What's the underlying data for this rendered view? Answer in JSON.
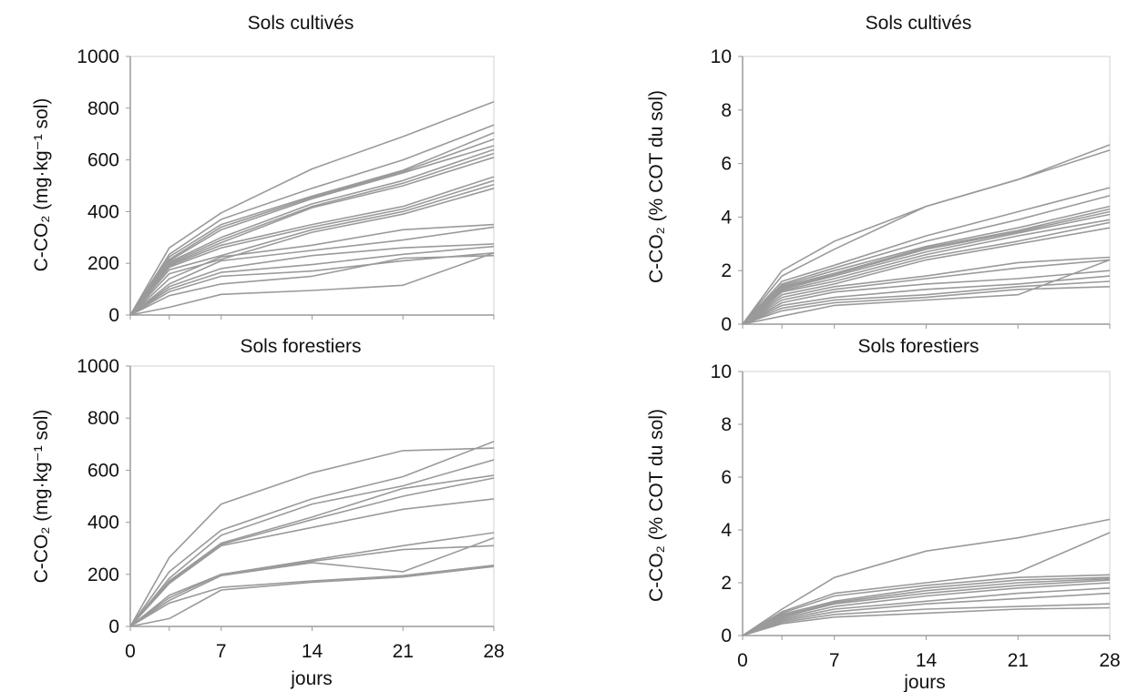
{
  "figure": {
    "line_color": "#9a9a9a",
    "axis_color": "#9a9a9a"
  },
  "chart_data": [
    {
      "type": "line",
      "title": "Sols cultivés",
      "ylabel": "C-CO₂ (mg·kg⁻¹ sol)",
      "xlabel": "",
      "x": [
        0,
        3,
        7,
        14,
        21,
        28
      ],
      "xlim": [
        0,
        28
      ],
      "ylim": [
        0,
        1000
      ],
      "yticks": [
        0,
        200,
        400,
        600,
        800,
        1000
      ],
      "xticks": [],
      "grid": false,
      "series": [
        {
          "values": [
            0,
            260,
            395,
            565,
            690,
            825
          ]
        },
        {
          "values": [
            0,
            235,
            370,
            490,
            600,
            735
          ]
        },
        {
          "values": [
            0,
            225,
            350,
            460,
            560,
            705
          ]
        },
        {
          "values": [
            0,
            215,
            340,
            455,
            555,
            680
          ]
        },
        {
          "values": [
            0,
            210,
            330,
            450,
            550,
            655
          ]
        },
        {
          "values": [
            0,
            205,
            300,
            430,
            520,
            640
          ]
        },
        {
          "values": [
            0,
            200,
            290,
            420,
            510,
            625
          ]
        },
        {
          "values": [
            0,
            195,
            280,
            415,
            500,
            610
          ]
        },
        {
          "values": [
            0,
            190,
            270,
            350,
            420,
            535
          ]
        },
        {
          "values": [
            0,
            185,
            260,
            340,
            410,
            520
          ]
        },
        {
          "values": [
            0,
            175,
            230,
            330,
            400,
            505
          ]
        },
        {
          "values": [
            0,
            160,
            215,
            320,
            390,
            490
          ]
        },
        {
          "values": [
            0,
            140,
            225,
            270,
            330,
            350
          ]
        },
        {
          "values": [
            0,
            120,
            210,
            250,
            290,
            340
          ]
        },
        {
          "values": [
            0,
            110,
            180,
            230,
            260,
            275
          ]
        },
        {
          "values": [
            0,
            100,
            165,
            195,
            235,
            265
          ]
        },
        {
          "values": [
            0,
            90,
            150,
            170,
            210,
            240
          ]
        },
        {
          "values": [
            0,
            75,
            120,
            150,
            220,
            230
          ]
        },
        {
          "values": [
            0,
            30,
            80,
            95,
            115,
            240
          ]
        }
      ]
    },
    {
      "type": "line",
      "title": "Sols cultivés",
      "ylabel": "C-CO₂ (% COT du sol)",
      "xlabel": "",
      "x": [
        0,
        3,
        7,
        14,
        21,
        28
      ],
      "xlim": [
        0,
        28
      ],
      "ylim": [
        0,
        10
      ],
      "yticks": [
        0,
        2,
        4,
        6,
        8,
        10
      ],
      "xticks": [],
      "grid": false,
      "series": [
        {
          "values": [
            0,
            2.0,
            3.1,
            4.4,
            5.4,
            6.7
          ]
        },
        {
          "values": [
            0,
            1.8,
            2.8,
            4.4,
            5.4,
            6.5
          ]
        },
        {
          "values": [
            0,
            1.6,
            2.2,
            3.3,
            4.2,
            5.1
          ]
        },
        {
          "values": [
            0,
            1.5,
            2.1,
            3.1,
            3.9,
            4.8
          ]
        },
        {
          "values": [
            0,
            1.45,
            2.0,
            2.9,
            3.6,
            4.4
          ]
        },
        {
          "values": [
            0,
            1.4,
            1.9,
            2.85,
            3.5,
            4.3
          ]
        },
        {
          "values": [
            0,
            1.35,
            1.85,
            2.8,
            3.45,
            4.2
          ]
        },
        {
          "values": [
            0,
            1.3,
            1.8,
            2.7,
            3.4,
            4.1
          ]
        },
        {
          "values": [
            0,
            1.25,
            1.7,
            2.6,
            3.3,
            3.9
          ]
        },
        {
          "values": [
            0,
            1.2,
            1.6,
            2.5,
            3.1,
            3.8
          ]
        },
        {
          "values": [
            0,
            1.1,
            1.5,
            2.4,
            3.0,
            3.6
          ]
        },
        {
          "values": [
            0,
            1.0,
            1.4,
            1.8,
            2.3,
            2.5
          ]
        },
        {
          "values": [
            0,
            0.9,
            1.3,
            1.7,
            2.1,
            2.4
          ]
        },
        {
          "values": [
            0,
            0.8,
            1.2,
            1.5,
            1.7,
            2.0
          ]
        },
        {
          "values": [
            0,
            0.7,
            1.0,
            1.3,
            1.5,
            1.8
          ]
        },
        {
          "values": [
            0,
            0.6,
            0.9,
            1.1,
            1.4,
            1.6
          ]
        },
        {
          "values": [
            0,
            0.5,
            0.8,
            1.0,
            1.3,
            1.4
          ]
        },
        {
          "values": [
            0,
            0.3,
            0.7,
            0.9,
            1.1,
            2.4
          ]
        }
      ]
    },
    {
      "type": "line",
      "title": "Sols forestiers",
      "ylabel": "C-CO₂ (mg·kg⁻¹ sol)",
      "xlabel": "jours",
      "x": [
        0,
        3,
        7,
        14,
        21,
        28
      ],
      "xlim": [
        0,
        28
      ],
      "ylim": [
        0,
        1000
      ],
      "yticks": [
        0,
        200,
        400,
        600,
        800,
        1000
      ],
      "xticks": [
        0,
        7,
        14,
        21,
        28
      ],
      "grid": false,
      "series": [
        {
          "values": [
            0,
            265,
            470,
            590,
            675,
            685
          ]
        },
        {
          "values": [
            0,
            210,
            370,
            490,
            575,
            710
          ]
        },
        {
          "values": [
            0,
            185,
            350,
            470,
            540,
            640
          ]
        },
        {
          "values": [
            0,
            175,
            320,
            420,
            530,
            580
          ]
        },
        {
          "values": [
            0,
            170,
            315,
            410,
            500,
            570
          ]
        },
        {
          "values": [
            0,
            165,
            310,
            380,
            450,
            490
          ]
        },
        {
          "values": [
            0,
            120,
            200,
            255,
            310,
            360
          ]
        },
        {
          "values": [
            0,
            110,
            200,
            250,
            295,
            310
          ]
        },
        {
          "values": [
            0,
            100,
            195,
            245,
            210,
            340
          ]
        },
        {
          "values": [
            0,
            90,
            150,
            175,
            195,
            235
          ]
        },
        {
          "values": [
            0,
            30,
            140,
            170,
            190,
            230
          ]
        }
      ]
    },
    {
      "type": "line",
      "title": "Sols forestiers",
      "ylabel": "C-CO₂ (% COT du sol)",
      "xlabel": "jours",
      "x": [
        0,
        3,
        7,
        14,
        21,
        28
      ],
      "xlim": [
        0,
        28
      ],
      "ylim": [
        0,
        10
      ],
      "yticks": [
        0,
        2,
        4,
        6,
        8,
        10
      ],
      "xticks": [
        0,
        7,
        14,
        21,
        28
      ],
      "grid": false,
      "series": [
        {
          "values": [
            0,
            1.0,
            2.2,
            3.2,
            3.7,
            4.4
          ]
        },
        {
          "values": [
            0,
            0.9,
            1.6,
            2.0,
            2.4,
            3.9
          ]
        },
        {
          "values": [
            0,
            0.85,
            1.5,
            1.9,
            2.2,
            2.3
          ]
        },
        {
          "values": [
            0,
            0.8,
            1.3,
            1.8,
            2.1,
            2.2
          ]
        },
        {
          "values": [
            0,
            0.75,
            1.25,
            1.7,
            2.0,
            2.15
          ]
        },
        {
          "values": [
            0,
            0.7,
            1.2,
            1.6,
            1.9,
            2.1
          ]
        },
        {
          "values": [
            0,
            0.65,
            1.1,
            1.5,
            1.8,
            2.0
          ]
        },
        {
          "values": [
            0,
            0.6,
            1.0,
            1.3,
            1.6,
            1.8
          ]
        },
        {
          "values": [
            0,
            0.55,
            0.9,
            1.2,
            1.4,
            1.6
          ]
        },
        {
          "values": [
            0,
            0.5,
            0.8,
            1.0,
            1.1,
            1.2
          ]
        },
        {
          "values": [
            0,
            0.45,
            0.7,
            0.85,
            1.0,
            1.05
          ]
        }
      ]
    }
  ]
}
